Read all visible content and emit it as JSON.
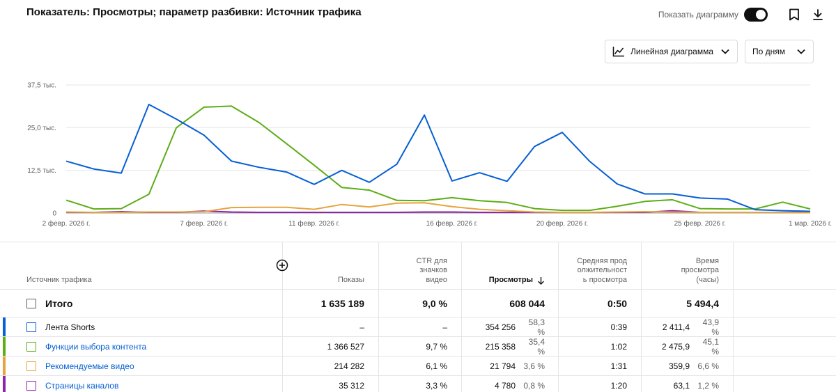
{
  "header": {
    "title": "Показатель: Просмотры; параметр разбивки: Источник трафика",
    "toggle_label": "Показать диаграмму",
    "toggle_on": true
  },
  "controls": {
    "chart_type": "Линейная диаграмма",
    "period": "По дням"
  },
  "colors": {
    "shorts": "#065fd4",
    "browse": "#5cad16",
    "suggested": "#e8a33d",
    "channel": "#8e24aa",
    "ink": "#0f0f0f",
    "link": "#065fd4"
  },
  "chart_data": {
    "type": "line",
    "ylim": [
      0,
      37500
    ],
    "yticks": [
      0,
      12500,
      25000,
      37500
    ],
    "ytick_labels": [
      "0",
      "12,5 тыс.",
      "25,0 тыс.",
      "37,5 тыс."
    ],
    "x_count": 28,
    "xticks": [
      {
        "index": 0,
        "label": "2 февр. 2026 г."
      },
      {
        "index": 5,
        "label": "7 февр. 2026 г."
      },
      {
        "index": 9,
        "label": "11 февр. 2026 г."
      },
      {
        "index": 14,
        "label": "16 февр. 2026 г."
      },
      {
        "index": 18,
        "label": "20 февр. 2026 г."
      },
      {
        "index": 23,
        "label": "25 февр. 2026 г."
      },
      {
        "index": 27,
        "label": "1 мар. 2026 г."
      }
    ],
    "series": [
      {
        "name": "Лента Shorts",
        "color": "#065fd4",
        "values": [
          15200,
          12900,
          11700,
          31800,
          27500,
          22800,
          15200,
          13400,
          12000,
          8400,
          12500,
          9000,
          14300,
          28700,
          9400,
          11800,
          9300,
          19500,
          23600,
          15100,
          8500,
          5600,
          5600,
          4400,
          4100,
          1000,
          700,
          500
        ]
      },
      {
        "name": "Функции выбора контента",
        "color": "#5cad16",
        "values": [
          3800,
          1200,
          1300,
          5500,
          25000,
          31000,
          31300,
          26500,
          20300,
          14000,
          7500,
          6700,
          3700,
          3600,
          4500,
          3600,
          3100,
          1300,
          800,
          800,
          2000,
          3400,
          3900,
          1300,
          1200,
          1200,
          3200,
          1200
        ]
      },
      {
        "name": "Рекомендуемые видео",
        "color": "#e8a33d",
        "values": [
          300,
          200,
          200,
          300,
          300,
          400,
          1600,
          1700,
          1700,
          1100,
          2500,
          1800,
          2900,
          3000,
          1900,
          1100,
          700,
          300,
          200,
          200,
          300,
          400,
          300,
          200,
          200,
          200,
          200,
          100
        ]
      },
      {
        "name": "Страницы каналов",
        "color": "#8e24aa",
        "values": [
          200,
          200,
          400,
          200,
          200,
          600,
          300,
          200,
          200,
          200,
          200,
          200,
          200,
          300,
          300,
          200,
          200,
          200,
          200,
          200,
          200,
          200,
          700,
          200,
          200,
          200,
          200,
          200
        ]
      }
    ]
  },
  "table": {
    "columns": {
      "source": "Источник трафика",
      "impressions": "Показы",
      "ctr": "CTR для значков видео",
      "views": "Просмотры",
      "avg_duration": "Средняя продолжительность просмотра",
      "watch_time": "Время просмотра (часы)"
    },
    "add_icon": "add-circle-icon",
    "sort_icon": "arrow-down-icon",
    "total": {
      "label": "Итого",
      "impressions": "1 635 189",
      "ctr": "9,0 %",
      "views": "608 044",
      "avg_duration": "0:50",
      "watch_time": "5 494,4"
    },
    "rows": [
      {
        "label": "Лента Shorts",
        "color": "#065fd4",
        "link": false,
        "impressions": "–",
        "ctr": "–",
        "views": "354 256",
        "views_pct": "58,3 %",
        "avg_duration": "0:39",
        "watch_time": "2 411,4",
        "watch_pct": "43,9 %"
      },
      {
        "label": "Функции выбора контента",
        "color": "#5cad16",
        "link": true,
        "impressions": "1 366 527",
        "ctr": "9,7 %",
        "views": "215 358",
        "views_pct": "35,4 %",
        "avg_duration": "1:02",
        "watch_time": "2 475,9",
        "watch_pct": "45,1 %"
      },
      {
        "label": "Рекомендуемые видео",
        "color": "#e8a33d",
        "link": true,
        "impressions": "214 282",
        "ctr": "6,1 %",
        "views": "21 794",
        "views_pct": "3,6 %",
        "avg_duration": "1:31",
        "watch_time": "359,9",
        "watch_pct": "6,6 %"
      },
      {
        "label": "Страницы каналов",
        "color": "#8e24aa",
        "link": true,
        "impressions": "35 312",
        "ctr": "3,3 %",
        "views": "4 780",
        "views_pct": "0,8 %",
        "avg_duration": "1:20",
        "watch_time": "63,1",
        "watch_pct": "1,2 %"
      }
    ]
  }
}
